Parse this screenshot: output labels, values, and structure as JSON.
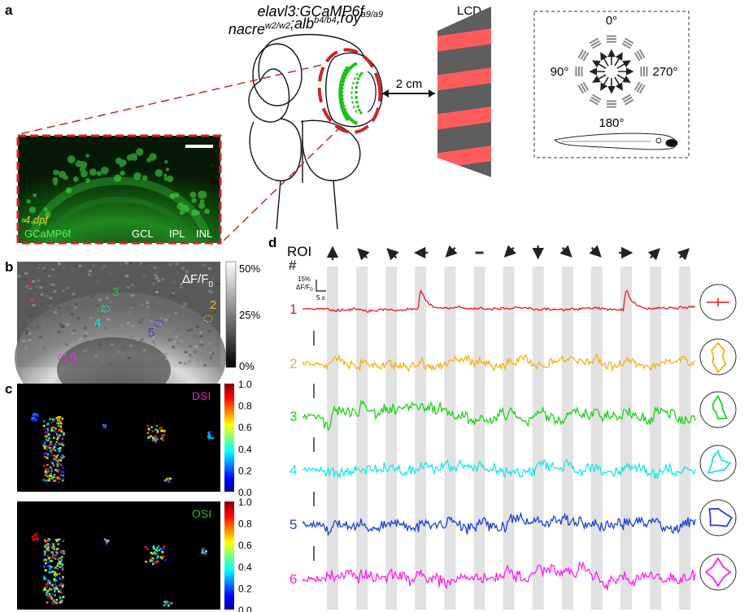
{
  "panels": {
    "a": {
      "label": "a",
      "genotype_line1": "elavl3:GCaMP6f",
      "genotype_line2_parts": [
        {
          "t": "nacre",
          "sup": "w2/w2"
        },
        {
          "t": ";alb",
          "sup": "b4/b4"
        },
        {
          "t": ";roy",
          "sup": "a9/a9"
        }
      ],
      "lcd_label": "LCD",
      "distance_label": "2 cm",
      "angles": {
        "top": "0°",
        "left": "90°",
        "right": "270°",
        "bottom": "180°"
      },
      "micrograph": {
        "age": "4 dpf",
        "indicator": "GCaMP6f",
        "layers": [
          "GCL",
          "IPL",
          "INL"
        ]
      }
    },
    "b": {
      "label": "b",
      "measure": "ΔF/F",
      "measure_sub": "0",
      "colorbar_ticks": [
        "50%",
        "25%",
        "0%"
      ],
      "rois": [
        {
          "id": "1",
          "color": "#e8191e"
        },
        {
          "id": "2",
          "color": "#f2b21a"
        },
        {
          "id": "3",
          "color": "#20d020"
        },
        {
          "id": "4",
          "color": "#19e6e6"
        },
        {
          "id": "5",
          "color": "#1f3fd8"
        },
        {
          "id": "6",
          "color": "#ff1ff0"
        }
      ]
    },
    "c": {
      "label": "c",
      "maps": [
        {
          "name": "DSI",
          "color": "#e020d8"
        },
        {
          "name": "OSI",
          "color": "#22c422"
        }
      ],
      "colorbar_ticks": [
        "1.0",
        "0.8",
        "0.6",
        "0.4",
        "0.2",
        "0.0"
      ]
    },
    "d": {
      "label": "d",
      "roi_header": "ROI",
      "roi_header_sub": "#",
      "scale_y": "15%",
      "scale_y_unit": "ΔF/F",
      "scale_y_unit_sub": "0",
      "scale_x": "5 s",
      "stimulus_sequence": [
        "up",
        "up-left",
        "up-left",
        "left",
        "down-left",
        "horizontal",
        "down-left",
        "down",
        "down-right",
        "down-right",
        "right",
        "up-right",
        "up-right"
      ]
    }
  },
  "chart_data": {
    "type": "line",
    "title": "",
    "xlabel": "",
    "ylabel": "",
    "series": [
      {
        "name": "1",
        "color": "#e8191e"
      },
      {
        "name": "2",
        "color": "#f2b21a"
      },
      {
        "name": "3",
        "color": "#20d020"
      },
      {
        "name": "4",
        "color": "#19e6e6"
      },
      {
        "name": "5",
        "color": "#1f3fd8"
      },
      {
        "name": "6",
        "color": "#ff1ff0"
      }
    ]
  }
}
